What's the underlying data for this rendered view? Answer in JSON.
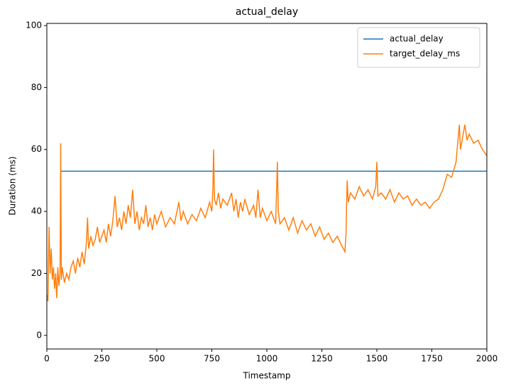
{
  "chart_data": {
    "type": "line",
    "title": "actual_delay",
    "x_label": "Timestamp",
    "y_label": "Duration (ms)",
    "xlim": [
      0,
      2000
    ],
    "xticks": [
      0,
      250,
      500,
      750,
      1000,
      1250,
      1500,
      1750,
      2000
    ],
    "ylim": [
      -4.4,
      100.7
    ],
    "yticks": [
      0,
      20,
      40,
      60,
      80,
      100
    ],
    "legend": "upper right",
    "series": [
      {
        "name": "actual_delay",
        "color": "#1f77b4",
        "x": [
          65,
          2000
        ],
        "values": [
          53,
          53
        ]
      },
      {
        "name": "target_delay_ms",
        "color": "#ff7f0e",
        "x": [
          0,
          5,
          10,
          15,
          20,
          25,
          30,
          35,
          40,
          45,
          50,
          55,
          60,
          63,
          66,
          70,
          80,
          90,
          100,
          110,
          120,
          130,
          140,
          150,
          160,
          170,
          180,
          185,
          190,
          200,
          210,
          220,
          230,
          240,
          250,
          260,
          270,
          280,
          290,
          300,
          310,
          320,
          330,
          340,
          350,
          360,
          370,
          380,
          390,
          400,
          410,
          420,
          430,
          440,
          450,
          460,
          470,
          480,
          490,
          500,
          520,
          540,
          560,
          580,
          600,
          610,
          620,
          640,
          660,
          680,
          700,
          720,
          740,
          750,
          755,
          758,
          762,
          770,
          780,
          790,
          800,
          820,
          840,
          850,
          860,
          870,
          880,
          890,
          900,
          920,
          940,
          950,
          960,
          970,
          980,
          1000,
          1020,
          1040,
          1048,
          1052,
          1060,
          1080,
          1100,
          1120,
          1140,
          1160,
          1180,
          1200,
          1220,
          1240,
          1260,
          1280,
          1300,
          1320,
          1340,
          1355,
          1360,
          1365,
          1370,
          1380,
          1400,
          1420,
          1440,
          1460,
          1480,
          1495,
          1500,
          1505,
          1520,
          1540,
          1560,
          1580,
          1600,
          1620,
          1640,
          1660,
          1680,
          1700,
          1720,
          1740,
          1760,
          1780,
          1800,
          1820,
          1840,
          1860,
          1875,
          1880,
          1890,
          1900,
          1910,
          1920,
          1940,
          1960,
          1980,
          2000
        ],
        "values": [
          13,
          11,
          35,
          20,
          28,
          18,
          22,
          15,
          20,
          12,
          22,
          16,
          20,
          62,
          18,
          22,
          17,
          20,
          18,
          22,
          24,
          20,
          25,
          22,
          27,
          23,
          30,
          38,
          28,
          32,
          29,
          31,
          35,
          30,
          32,
          34,
          30,
          36,
          32,
          37,
          45,
          35,
          38,
          34,
          40,
          36,
          42,
          38,
          47,
          36,
          40,
          34,
          38,
          36,
          42,
          35,
          38,
          34,
          39,
          36,
          40,
          35,
          38,
          36,
          43,
          37,
          40,
          36,
          39,
          37,
          41,
          38,
          43,
          40,
          48,
          60,
          44,
          42,
          46,
          41,
          44,
          42,
          46,
          40,
          44,
          38,
          43,
          40,
          44,
          39,
          42,
          38,
          47,
          38,
          41,
          37,
          40,
          36,
          56,
          40,
          36,
          38,
          34,
          38,
          33,
          37,
          34,
          36,
          32,
          35,
          31,
          33,
          30,
          32,
          29,
          27,
          33,
          50,
          43,
          46,
          44,
          48,
          45,
          47,
          44,
          48,
          56,
          45,
          46,
          44,
          47,
          43,
          46,
          44,
          45,
          42,
          44,
          42,
          43,
          41,
          43,
          44,
          47,
          52,
          51,
          56,
          68,
          60,
          64,
          68,
          63,
          65,
          62,
          63,
          60,
          58
        ]
      }
    ]
  }
}
